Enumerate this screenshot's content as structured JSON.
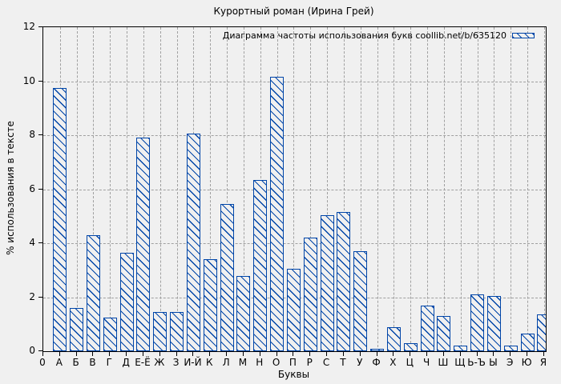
{
  "chart_data": {
    "type": "bar",
    "title": "Курортный роман (Ирина Грей)",
    "legend_label": "Диаграмма частоты использования букв coollib.net/b/635120",
    "xlabel": "Буквы",
    "ylabel": "% использования в тексте",
    "ylim": [
      0,
      12
    ],
    "yticks": [
      0,
      2,
      4,
      6,
      8,
      10,
      12
    ],
    "x_origin_label": "0",
    "grid": true,
    "legend_position": "top-right-inside",
    "categories": [
      "А",
      "Б",
      "В",
      "Г",
      "Д",
      "Е-Ё",
      "Ж",
      "З",
      "И-Й",
      "К",
      "Л",
      "М",
      "Н",
      "О",
      "П",
      "Р",
      "С",
      "Т",
      "У",
      "Ф",
      "Х",
      "Ц",
      "Ч",
      "Ш",
      "Щ",
      "Ь-Ъ",
      "Ы",
      "Э",
      "Ю",
      "Я"
    ],
    "values": [
      9.75,
      1.6,
      4.3,
      1.25,
      3.65,
      7.9,
      1.45,
      1.45,
      8.05,
      3.4,
      5.45,
      2.8,
      6.35,
      10.15,
      3.05,
      4.2,
      5.05,
      5.15,
      3.7,
      0.1,
      0.9,
      0.3,
      1.7,
      1.3,
      0.2,
      2.1,
      2.05,
      0.2,
      0.65,
      1.35
    ],
    "colors": {
      "bar_line": "#0045a8",
      "background": "#f0f0f0",
      "grid": "#a0a0a0",
      "axis": "#000000",
      "text": "#000000"
    }
  }
}
